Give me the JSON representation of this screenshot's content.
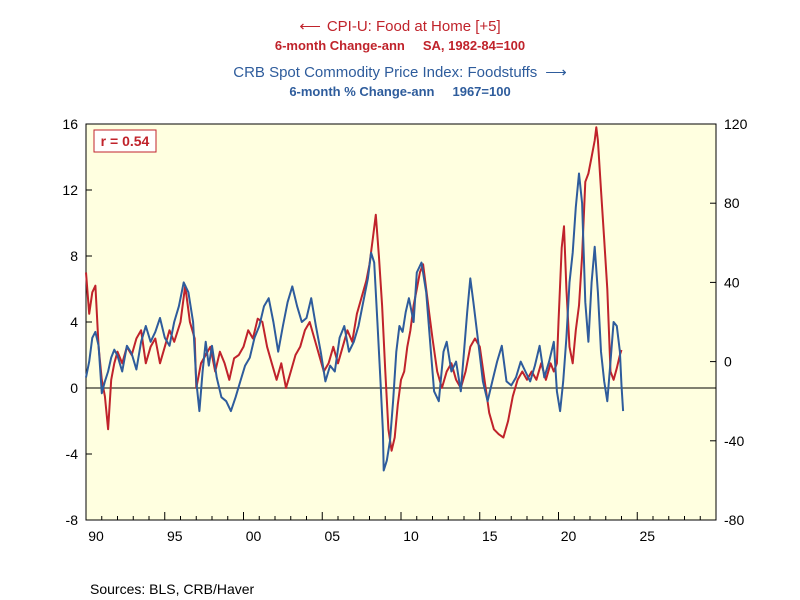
{
  "titles": {
    "left_series": "CPI-U: Food at Home [+5]",
    "left_sub_a": "6-month Change-ann",
    "left_sub_b": "SA, 1982-84=100",
    "right_series": "CRB Spot Commodity Price Index: Foodstuffs",
    "right_sub_a": "6-month % Change-ann",
    "right_sub_b": "1967=100",
    "left_arrow": "⟵",
    "right_arrow": "⟶"
  },
  "annotation": "r = 0.54",
  "sources": "Sources:  BLS, CRB/Haver",
  "colors": {
    "cpi": "#c0232b",
    "crb": "#2e5c9c",
    "plot_background": "#ffffe0",
    "zero_line": "#000000"
  },
  "chart_data": {
    "type": "line",
    "grid": false,
    "x_axis": {
      "range": [
        1990,
        2030
      ],
      "ticks": [
        1990,
        1995,
        2000,
        2005,
        2010,
        2015,
        2020,
        2025
      ],
      "tick_labels": [
        "90",
        "95",
        "00",
        "05",
        "10",
        "15",
        "20",
        "25"
      ]
    },
    "y_left": {
      "range": [
        -8,
        16
      ],
      "ticks": [
        -8,
        -4,
        0,
        4,
        8,
        12,
        16
      ]
    },
    "y_right": {
      "range": [
        -80,
        120
      ],
      "ticks": [
        -80,
        -40,
        0,
        40,
        80,
        120
      ]
    },
    "series": [
      {
        "axis": "left",
        "color": "#c0232b",
        "points": [
          [
            1990.0,
            7.0
          ],
          [
            1990.2,
            4.5
          ],
          [
            1990.4,
            5.8
          ],
          [
            1990.6,
            6.2
          ],
          [
            1990.8,
            2.5
          ],
          [
            1991.0,
            0.5
          ],
          [
            1991.2,
            -0.5
          ],
          [
            1991.4,
            -2.5
          ],
          [
            1991.6,
            0.5
          ],
          [
            1991.8,
            1.5
          ],
          [
            1992.0,
            2.2
          ],
          [
            1992.3,
            1.5
          ],
          [
            1992.6,
            2.5
          ],
          [
            1992.9,
            2.0
          ],
          [
            1993.2,
            3.0
          ],
          [
            1993.5,
            3.5
          ],
          [
            1993.8,
            1.5
          ],
          [
            1994.1,
            2.5
          ],
          [
            1994.4,
            3.0
          ],
          [
            1994.7,
            1.5
          ],
          [
            1995.0,
            2.5
          ],
          [
            1995.3,
            3.5
          ],
          [
            1995.6,
            2.8
          ],
          [
            1996.0,
            4.0
          ],
          [
            1996.3,
            6.2
          ],
          [
            1996.6,
            4.0
          ],
          [
            1996.9,
            3.0
          ],
          [
            1997.0,
            0.0
          ],
          [
            1997.3,
            1.5
          ],
          [
            1997.6,
            2.0
          ],
          [
            1997.9,
            2.5
          ],
          [
            1998.2,
            1.0
          ],
          [
            1998.5,
            2.2
          ],
          [
            1998.8,
            1.5
          ],
          [
            1999.1,
            0.5
          ],
          [
            1999.4,
            1.8
          ],
          [
            1999.7,
            2.0
          ],
          [
            2000.0,
            2.5
          ],
          [
            2000.3,
            3.5
          ],
          [
            2000.6,
            3.0
          ],
          [
            2000.9,
            4.2
          ],
          [
            2001.2,
            4.0
          ],
          [
            2001.5,
            2.5
          ],
          [
            2001.8,
            1.5
          ],
          [
            2002.1,
            0.5
          ],
          [
            2002.4,
            1.5
          ],
          [
            2002.7,
            0.0
          ],
          [
            2003.0,
            1.0
          ],
          [
            2003.3,
            2.0
          ],
          [
            2003.6,
            2.5
          ],
          [
            2003.9,
            3.5
          ],
          [
            2004.2,
            4.0
          ],
          [
            2004.5,
            3.0
          ],
          [
            2004.8,
            2.0
          ],
          [
            2005.1,
            1.0
          ],
          [
            2005.4,
            1.5
          ],
          [
            2005.7,
            2.5
          ],
          [
            2006.0,
            1.5
          ],
          [
            2006.3,
            2.5
          ],
          [
            2006.6,
            3.5
          ],
          [
            2006.9,
            2.8
          ],
          [
            2007.2,
            4.5
          ],
          [
            2007.5,
            5.5
          ],
          [
            2007.8,
            6.5
          ],
          [
            2008.0,
            7.5
          ],
          [
            2008.2,
            9.0
          ],
          [
            2008.4,
            10.5
          ],
          [
            2008.6,
            8.0
          ],
          [
            2008.8,
            5.0
          ],
          [
            2009.0,
            1.0
          ],
          [
            2009.2,
            -2.5
          ],
          [
            2009.4,
            -3.8
          ],
          [
            2009.6,
            -3.0
          ],
          [
            2009.8,
            -1.0
          ],
          [
            2010.0,
            0.5
          ],
          [
            2010.2,
            1.0
          ],
          [
            2010.4,
            2.5
          ],
          [
            2010.6,
            3.5
          ],
          [
            2010.8,
            5.0
          ],
          [
            2011.0,
            6.0
          ],
          [
            2011.2,
            7.0
          ],
          [
            2011.4,
            7.5
          ],
          [
            2011.6,
            6.0
          ],
          [
            2011.8,
            4.5
          ],
          [
            2012.0,
            3.0
          ],
          [
            2012.3,
            1.0
          ],
          [
            2012.6,
            0.0
          ],
          [
            2012.9,
            1.0
          ],
          [
            2013.2,
            1.5
          ],
          [
            2013.5,
            0.5
          ],
          [
            2013.8,
            0.0
          ],
          [
            2014.1,
            1.0
          ],
          [
            2014.4,
            2.5
          ],
          [
            2014.7,
            3.0
          ],
          [
            2015.0,
            2.5
          ],
          [
            2015.3,
            0.5
          ],
          [
            2015.6,
            -1.5
          ],
          [
            2015.9,
            -2.5
          ],
          [
            2016.2,
            -2.8
          ],
          [
            2016.5,
            -3.0
          ],
          [
            2016.8,
            -2.0
          ],
          [
            2017.1,
            -0.5
          ],
          [
            2017.4,
            0.5
          ],
          [
            2017.7,
            1.0
          ],
          [
            2018.0,
            0.5
          ],
          [
            2018.3,
            1.0
          ],
          [
            2018.6,
            0.5
          ],
          [
            2018.9,
            1.5
          ],
          [
            2019.2,
            0.5
          ],
          [
            2019.5,
            1.5
          ],
          [
            2019.7,
            1.0
          ],
          [
            2019.9,
            1.5
          ],
          [
            2020.0,
            4.0
          ],
          [
            2020.2,
            8.5
          ],
          [
            2020.35,
            9.8
          ],
          [
            2020.5,
            6.0
          ],
          [
            2020.7,
            2.5
          ],
          [
            2020.9,
            1.5
          ],
          [
            2021.1,
            3.5
          ],
          [
            2021.3,
            5.0
          ],
          [
            2021.5,
            8.0
          ],
          [
            2021.7,
            12.5
          ],
          [
            2021.9,
            13.0
          ],
          [
            2022.1,
            14.0
          ],
          [
            2022.3,
            15.0
          ],
          [
            2022.4,
            15.8
          ],
          [
            2022.5,
            15.0
          ],
          [
            2022.7,
            12.0
          ],
          [
            2022.9,
            9.0
          ],
          [
            2023.1,
            6.0
          ],
          [
            2023.2,
            3.5
          ],
          [
            2023.3,
            1.0
          ],
          [
            2023.5,
            0.5
          ],
          [
            2023.7,
            1.2
          ],
          [
            2023.9,
            2.0
          ],
          [
            2024.0,
            2.3
          ]
        ]
      },
      {
        "axis": "right",
        "color": "#2e5c9c",
        "points": [
          [
            1990.0,
            -8
          ],
          [
            1990.2,
            0
          ],
          [
            1990.4,
            12
          ],
          [
            1990.6,
            15
          ],
          [
            1990.8,
            8
          ],
          [
            1991.0,
            -16
          ],
          [
            1991.2,
            -10
          ],
          [
            1991.4,
            -5
          ],
          [
            1991.6,
            2
          ],
          [
            1991.8,
            6
          ],
          [
            1992.0,
            3
          ],
          [
            1992.3,
            -5
          ],
          [
            1992.6,
            8
          ],
          [
            1992.9,
            4
          ],
          [
            1993.2,
            -4
          ],
          [
            1993.5,
            10
          ],
          [
            1993.8,
            18
          ],
          [
            1994.1,
            10
          ],
          [
            1994.4,
            15
          ],
          [
            1994.7,
            22
          ],
          [
            1995.0,
            12
          ],
          [
            1995.3,
            8
          ],
          [
            1995.6,
            20
          ],
          [
            1995.9,
            28
          ],
          [
            1996.2,
            40
          ],
          [
            1996.5,
            35
          ],
          [
            1996.8,
            20
          ],
          [
            1997.0,
            -10
          ],
          [
            1997.2,
            -25
          ],
          [
            1997.4,
            -5
          ],
          [
            1997.6,
            10
          ],
          [
            1997.8,
            -2
          ],
          [
            1998.0,
            8
          ],
          [
            1998.3,
            -8
          ],
          [
            1998.6,
            -18
          ],
          [
            1998.9,
            -20
          ],
          [
            1999.2,
            -25
          ],
          [
            1999.5,
            -18
          ],
          [
            1999.8,
            -10
          ],
          [
            2000.1,
            -2
          ],
          [
            2000.4,
            2
          ],
          [
            2000.7,
            12
          ],
          [
            2001.0,
            18
          ],
          [
            2001.3,
            28
          ],
          [
            2001.6,
            32
          ],
          [
            2001.9,
            20
          ],
          [
            2002.2,
            5
          ],
          [
            2002.5,
            18
          ],
          [
            2002.8,
            30
          ],
          [
            2003.1,
            38
          ],
          [
            2003.4,
            28
          ],
          [
            2003.7,
            20
          ],
          [
            2004.0,
            22
          ],
          [
            2004.3,
            32
          ],
          [
            2004.6,
            18
          ],
          [
            2004.9,
            5
          ],
          [
            2005.2,
            -10
          ],
          [
            2005.5,
            -2
          ],
          [
            2005.8,
            -5
          ],
          [
            2006.1,
            12
          ],
          [
            2006.4,
            18
          ],
          [
            2006.7,
            5
          ],
          [
            2007.0,
            10
          ],
          [
            2007.3,
            18
          ],
          [
            2007.6,
            30
          ],
          [
            2007.9,
            42
          ],
          [
            2008.1,
            55
          ],
          [
            2008.3,
            50
          ],
          [
            2008.5,
            20
          ],
          [
            2008.7,
            -10
          ],
          [
            2008.85,
            -35
          ],
          [
            2008.9,
            -55
          ],
          [
            2009.1,
            -50
          ],
          [
            2009.3,
            -40
          ],
          [
            2009.5,
            -20
          ],
          [
            2009.7,
            5
          ],
          [
            2009.9,
            18
          ],
          [
            2010.1,
            15
          ],
          [
            2010.3,
            25
          ],
          [
            2010.5,
            32
          ],
          [
            2010.8,
            20
          ],
          [
            2011.0,
            45
          ],
          [
            2011.3,
            50
          ],
          [
            2011.6,
            35
          ],
          [
            2011.9,
            5
          ],
          [
            2012.1,
            -15
          ],
          [
            2012.4,
            -20
          ],
          [
            2012.7,
            5
          ],
          [
            2012.9,
            10
          ],
          [
            2013.2,
            -5
          ],
          [
            2013.5,
            0
          ],
          [
            2013.8,
            -15
          ],
          [
            2014.0,
            5
          ],
          [
            2014.2,
            25
          ],
          [
            2014.4,
            42
          ],
          [
            2014.6,
            30
          ],
          [
            2014.9,
            10
          ],
          [
            2015.2,
            -10
          ],
          [
            2015.5,
            -20
          ],
          [
            2015.8,
            -10
          ],
          [
            2016.1,
            0
          ],
          [
            2016.4,
            8
          ],
          [
            2016.7,
            -10
          ],
          [
            2017.0,
            -12
          ],
          [
            2017.3,
            -8
          ],
          [
            2017.6,
            0
          ],
          [
            2017.9,
            -5
          ],
          [
            2018.2,
            -10
          ],
          [
            2018.5,
            -2
          ],
          [
            2018.8,
            8
          ],
          [
            2019.1,
            -8
          ],
          [
            2019.4,
            0
          ],
          [
            2019.7,
            10
          ],
          [
            2019.9,
            -15
          ],
          [
            2020.1,
            -25
          ],
          [
            2020.3,
            -10
          ],
          [
            2020.5,
            12
          ],
          [
            2020.7,
            40
          ],
          [
            2020.9,
            55
          ],
          [
            2021.1,
            78
          ],
          [
            2021.3,
            95
          ],
          [
            2021.5,
            80
          ],
          [
            2021.7,
            30
          ],
          [
            2021.9,
            10
          ],
          [
            2022.1,
            40
          ],
          [
            2022.3,
            58
          ],
          [
            2022.5,
            35
          ],
          [
            2022.7,
            5
          ],
          [
            2022.9,
            -10
          ],
          [
            2023.1,
            -20
          ],
          [
            2023.3,
            0
          ],
          [
            2023.5,
            20
          ],
          [
            2023.7,
            18
          ],
          [
            2023.9,
            5
          ],
          [
            2024.0,
            -12
          ],
          [
            2024.1,
            -25
          ]
        ]
      }
    ]
  }
}
